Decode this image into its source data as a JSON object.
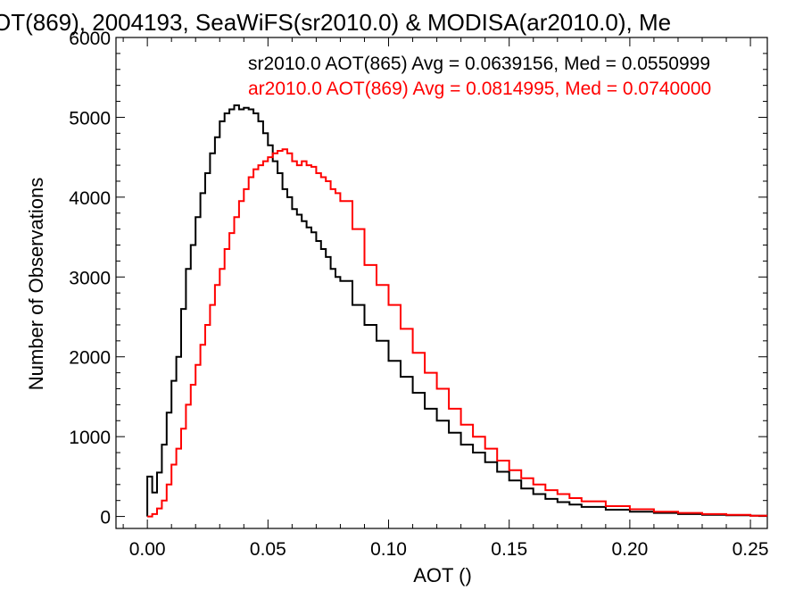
{
  "chart_data": {
    "type": "line",
    "title": "OT(869), 2004193, SeaWiFS(sr2010.0) & MODISA(ar2010.0), Me",
    "xlabel": "AOT ()",
    "ylabel": "Number of Observations",
    "xlim": [
      -0.013,
      0.257
    ],
    "ylim": [
      -150,
      6000
    ],
    "x_ticks": [
      0.0,
      0.05,
      0.1,
      0.15,
      0.2,
      0.25
    ],
    "x_tick_labels": [
      "0.00",
      "0.05",
      "0.10",
      "0.15",
      "0.20",
      "0.25"
    ],
    "y_ticks": [
      0,
      1000,
      2000,
      3000,
      4000,
      5000,
      6000
    ],
    "y_tick_labels": [
      "0",
      "1000",
      "2000",
      "3000",
      "4000",
      "5000",
      "6000"
    ],
    "grid": false,
    "legend_position": "top-right",
    "series": [
      {
        "name": "sr2010.0 AOT(865) Avg = 0.0639156, Med = 0.0550999",
        "color": "#000000",
        "x": [
          0.0,
          0.002,
          0.004,
          0.006,
          0.008,
          0.01,
          0.012,
          0.014,
          0.016,
          0.018,
          0.02,
          0.022,
          0.024,
          0.026,
          0.028,
          0.03,
          0.032,
          0.034,
          0.036,
          0.038,
          0.04,
          0.042,
          0.044,
          0.046,
          0.048,
          0.05,
          0.052,
          0.054,
          0.056,
          0.058,
          0.06,
          0.062,
          0.064,
          0.066,
          0.068,
          0.07,
          0.072,
          0.074,
          0.076,
          0.078,
          0.08,
          0.085,
          0.09,
          0.095,
          0.1,
          0.105,
          0.11,
          0.115,
          0.12,
          0.125,
          0.13,
          0.135,
          0.14,
          0.145,
          0.15,
          0.155,
          0.16,
          0.165,
          0.17,
          0.175,
          0.18,
          0.19,
          0.2,
          0.21,
          0.22,
          0.23,
          0.24,
          0.25,
          0.256
        ],
        "values": [
          500,
          300,
          550,
          900,
          1300,
          1700,
          2000,
          2600,
          3100,
          3400,
          3750,
          4050,
          4300,
          4550,
          4750,
          4950,
          5050,
          5100,
          5150,
          5100,
          5120,
          5100,
          5050,
          4950,
          4800,
          4650,
          4450,
          4300,
          4100,
          4000,
          3850,
          3780,
          3700,
          3620,
          3560,
          3450,
          3350,
          3250,
          3100,
          3000,
          2950,
          2650,
          2400,
          2200,
          1950,
          1750,
          1550,
          1350,
          1200,
          1050,
          900,
          800,
          680,
          560,
          450,
          350,
          280,
          220,
          180,
          150,
          120,
          85,
          60,
          45,
          30,
          20,
          15,
          10,
          10
        ]
      },
      {
        "name": "ar2010.0 AOT(869) Avg = 0.0814995, Med = 0.0740000",
        "color": "#ff0000",
        "x": [
          0.0,
          0.002,
          0.004,
          0.006,
          0.008,
          0.01,
          0.012,
          0.014,
          0.016,
          0.018,
          0.02,
          0.022,
          0.024,
          0.026,
          0.028,
          0.03,
          0.032,
          0.034,
          0.036,
          0.038,
          0.04,
          0.042,
          0.044,
          0.046,
          0.048,
          0.05,
          0.052,
          0.054,
          0.056,
          0.058,
          0.06,
          0.062,
          0.064,
          0.066,
          0.068,
          0.07,
          0.072,
          0.074,
          0.076,
          0.078,
          0.08,
          0.085,
          0.09,
          0.095,
          0.1,
          0.105,
          0.11,
          0.115,
          0.12,
          0.125,
          0.13,
          0.135,
          0.14,
          0.145,
          0.15,
          0.155,
          0.16,
          0.165,
          0.17,
          0.175,
          0.18,
          0.19,
          0.2,
          0.21,
          0.22,
          0.23,
          0.24,
          0.25,
          0.256
        ],
        "values": [
          0,
          30,
          100,
          200,
          400,
          650,
          850,
          1100,
          1400,
          1650,
          1900,
          2150,
          2400,
          2650,
          2900,
          3100,
          3350,
          3550,
          3750,
          3950,
          4100,
          4250,
          4350,
          4400,
          4450,
          4500,
          4550,
          4580,
          4600,
          4550,
          4450,
          4400,
          4450,
          4400,
          4380,
          4300,
          4250,
          4200,
          4100,
          4050,
          3950,
          3600,
          3150,
          2900,
          2650,
          2350,
          2050,
          1800,
          1600,
          1350,
          1150,
          1000,
          850,
          700,
          580,
          480,
          400,
          330,
          280,
          230,
          190,
          130,
          90,
          60,
          45,
          30,
          20,
          10,
          10
        ]
      }
    ]
  }
}
